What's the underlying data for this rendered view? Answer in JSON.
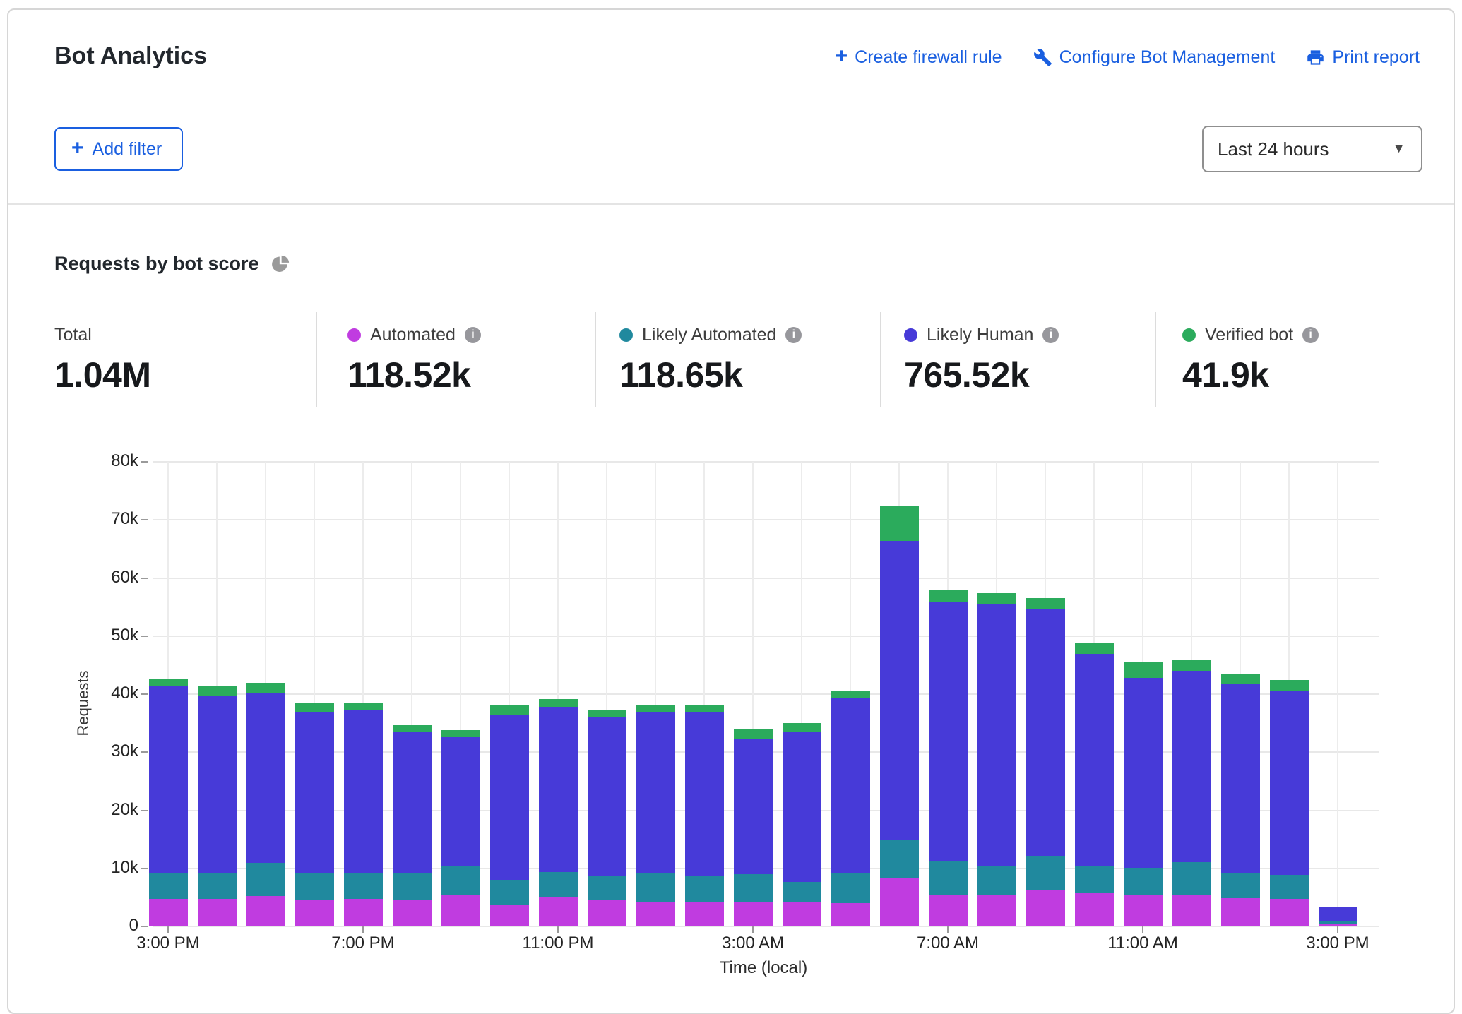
{
  "header": {
    "title": "Bot Analytics",
    "actions": [
      {
        "label": "Create firewall rule",
        "icon": "plus-icon"
      },
      {
        "label": "Configure Bot Management",
        "icon": "wrench-icon"
      },
      {
        "label": "Print report",
        "icon": "printer-icon"
      }
    ],
    "add_filter_label": "Add filter",
    "time_range": "Last 24 hours"
  },
  "section": {
    "title": "Requests by bot score",
    "icon": "pie-chart-icon"
  },
  "stats": {
    "total": {
      "label": "Total",
      "value": "1.04M"
    },
    "breakdown": [
      {
        "label": "Automated",
        "value": "118.52k",
        "color": "#c03ce0"
      },
      {
        "label": "Likely Automated",
        "value": "118.65k",
        "color": "#20899e"
      },
      {
        "label": "Likely Human",
        "value": "765.52k",
        "color": "#473ad8"
      },
      {
        "label": "Verified bot",
        "value": "41.9k",
        "color": "#2bab5c"
      }
    ]
  },
  "chart_data": {
    "type": "bar",
    "stacked": true,
    "title": "Requests by bot score",
    "xlabel": "Time (local)",
    "ylabel": "Requests",
    "ylim": [
      0,
      80000
    ],
    "grid": true,
    "legend_position": "top-stats-row",
    "ytick_values": [
      0,
      10000,
      20000,
      30000,
      40000,
      50000,
      60000,
      70000,
      80000
    ],
    "ytick_labels": [
      "0",
      "10k",
      "20k",
      "30k",
      "40k",
      "50k",
      "60k",
      "70k",
      "80k"
    ],
    "categories": [
      "3:00 PM",
      "4:00 PM",
      "5:00 PM",
      "6:00 PM",
      "7:00 PM",
      "8:00 PM",
      "9:00 PM",
      "10:00 PM",
      "11:00 PM",
      "12:00 AM",
      "1:00 AM",
      "2:00 AM",
      "3:00 AM",
      "4:00 AM",
      "5:00 AM",
      "6:00 AM",
      "7:00 AM",
      "8:00 AM",
      "9:00 AM",
      "10:00 AM",
      "11:00 AM",
      "12:00 PM",
      "1:00 PM",
      "2:00 PM",
      "3:00 PM"
    ],
    "x_tick_indices": [
      0,
      4,
      8,
      12,
      16,
      20,
      24
    ],
    "series": [
      {
        "name": "Automated",
        "color": "#c03ce0",
        "values": [
          4800,
          4800,
          5200,
          4500,
          4800,
          4500,
          5500,
          3800,
          5000,
          4500,
          4200,
          4100,
          4200,
          4100,
          4000,
          8300,
          5400,
          5300,
          6300,
          5700,
          5500,
          5300,
          4900,
          4800,
          500
        ]
      },
      {
        "name": "Likely Automated",
        "color": "#20899e",
        "values": [
          4400,
          4500,
          5800,
          4600,
          4500,
          4700,
          5000,
          4200,
          4400,
          4300,
          4900,
          4600,
          4800,
          3600,
          5300,
          6700,
          5800,
          5000,
          5900,
          4800,
          4600,
          5800,
          4300,
          4100,
          500
        ]
      },
      {
        "name": "Likely Human",
        "color": "#473ad8",
        "values": [
          32200,
          30500,
          29200,
          27900,
          27900,
          24200,
          22100,
          28400,
          28400,
          27200,
          27800,
          28200,
          23400,
          25900,
          30000,
          51400,
          44700,
          45100,
          42400,
          36400,
          32700,
          32900,
          32600,
          31600,
          2300
        ]
      },
      {
        "name": "Verified bot",
        "color": "#2bab5c",
        "values": [
          1200,
          1600,
          1700,
          1500,
          1400,
          1200,
          1200,
          1600,
          1400,
          1300,
          1200,
          1200,
          1700,
          1400,
          1300,
          5900,
          2000,
          2000,
          2000,
          2000,
          2700,
          1800,
          1600,
          1900,
          0
        ]
      }
    ]
  }
}
